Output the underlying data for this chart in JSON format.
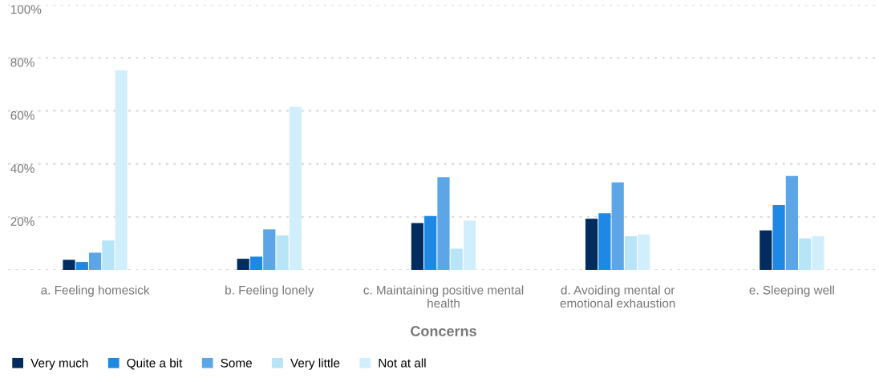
{
  "chart_data": {
    "type": "bar",
    "xlabel": "Concerns",
    "categories": [
      "a. Feeling homesick",
      "b. Feeling lonely",
      "c. Maintaining positive mental health",
      "d. Avoiding mental or emotional exhaustion",
      "e. Sleeping well"
    ],
    "series": [
      {
        "name": "Very much",
        "color": "#022c5e",
        "values": [
          3.8,
          4.2,
          17.7,
          19.3,
          14.9
        ]
      },
      {
        "name": "Quite a bit",
        "color": "#1e88e5",
        "values": [
          3.0,
          5.0,
          20.3,
          21.4,
          24.5
        ]
      },
      {
        "name": "Some",
        "color": "#5ca6e8",
        "values": [
          6.5,
          15.3,
          35.0,
          33.0,
          35.4
        ]
      },
      {
        "name": "Very little",
        "color": "#b8e4f8",
        "values": [
          11.1,
          13.0,
          8.0,
          12.7,
          11.9
        ]
      },
      {
        "name": "Not at all",
        "color": "#d0eefc",
        "values": [
          75.3,
          61.5,
          18.6,
          13.4,
          12.7
        ]
      }
    ],
    "ylim": [
      0,
      100
    ],
    "yticks": [
      {
        "value": 0,
        "label": null
      },
      {
        "value": 20,
        "label": "20%"
      },
      {
        "value": 40,
        "label": "40%"
      },
      {
        "value": 60,
        "label": "60%"
      },
      {
        "value": 80,
        "label": "80%"
      },
      {
        "value": 100,
        "label": "100%"
      }
    ],
    "grid": "y",
    "legend": "bottom left"
  }
}
